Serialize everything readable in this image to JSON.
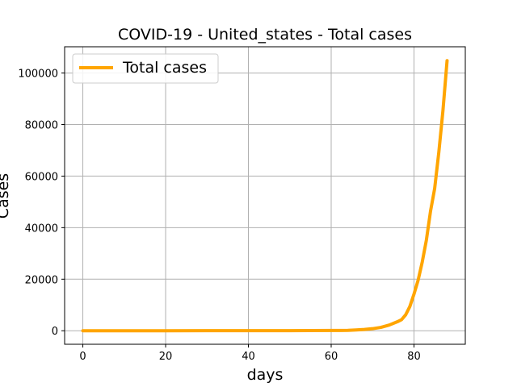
{
  "chart_data": {
    "type": "line",
    "title": "COVID-19 - United_states - Total cases",
    "xlabel": "days",
    "ylabel": "Cases",
    "xlim": [
      -4.4,
      92.4
    ],
    "ylim": [
      -5247,
      110187
    ],
    "xticks": [
      0,
      20,
      40,
      60,
      80
    ],
    "yticks": [
      0,
      20000,
      40000,
      60000,
      80000,
      100000
    ],
    "grid": true,
    "legend_position": "top-left",
    "series": [
      {
        "name": "Total cases",
        "color": "#ffa500",
        "x": [
          0,
          10,
          20,
          30,
          40,
          50,
          55,
          60,
          62,
          64,
          66,
          68,
          70,
          72,
          74,
          76,
          77,
          78,
          79,
          80,
          81,
          82,
          83,
          84,
          85,
          86,
          87,
          88
        ],
        "y": [
          1,
          8,
          12,
          15,
          15,
          35,
          60,
          100,
          125,
          160,
          300,
          500,
          800,
          1300,
          2200,
          3500,
          4300,
          6200,
          9400,
          14200,
          19600,
          26700,
          35200,
          46400,
          55200,
          69200,
          85400,
          104800
        ]
      }
    ]
  }
}
